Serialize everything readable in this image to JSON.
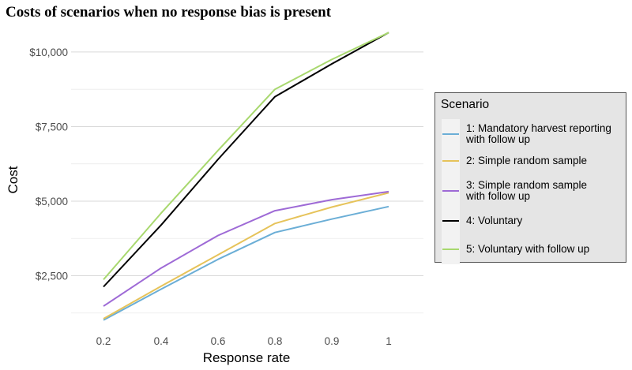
{
  "chart_data": {
    "type": "line",
    "title": "Costs of scenarios when no response bias is present",
    "xlabel": "Response rate",
    "ylabel": "Cost",
    "x": [
      0.2,
      0.4,
      0.6,
      0.8,
      0.9,
      1
    ],
    "x_tick_labels": [
      "0.2",
      "0.4",
      "0.6",
      "0.8",
      "0.9",
      "1"
    ],
    "y_ticks": [
      2500,
      5000,
      7500,
      10000
    ],
    "y_tick_labels": [
      "$2,500",
      "$5,000",
      "$7,500",
      "$10,000"
    ],
    "ylim": [
      900,
      10950
    ],
    "grid": true,
    "legend": {
      "title": "Scenario",
      "position": "right"
    },
    "series": [
      {
        "name": "1: Mandatory harvest reporting\nwith follow up",
        "color": "#6baed6",
        "values": [
          1010,
          2050,
          3050,
          3950,
          4400,
          4820
        ]
      },
      {
        "name": "2: Simple random sample",
        "color": "#e6c35a",
        "values": [
          1060,
          2150,
          3200,
          4250,
          4800,
          5280
        ]
      },
      {
        "name": "3: Simple random sample\nwith follow up",
        "color": "#9e6ad6",
        "values": [
          1480,
          2760,
          3850,
          4680,
          5050,
          5320
        ]
      },
      {
        "name": "4: Voluntary",
        "color": "#000000",
        "values": [
          2130,
          4200,
          6400,
          8500,
          9600,
          10650
        ]
      },
      {
        "name": "5: Voluntary with follow up",
        "color": "#a8d86e",
        "values": [
          2370,
          4600,
          6700,
          8750,
          9750,
          10650
        ]
      }
    ]
  }
}
